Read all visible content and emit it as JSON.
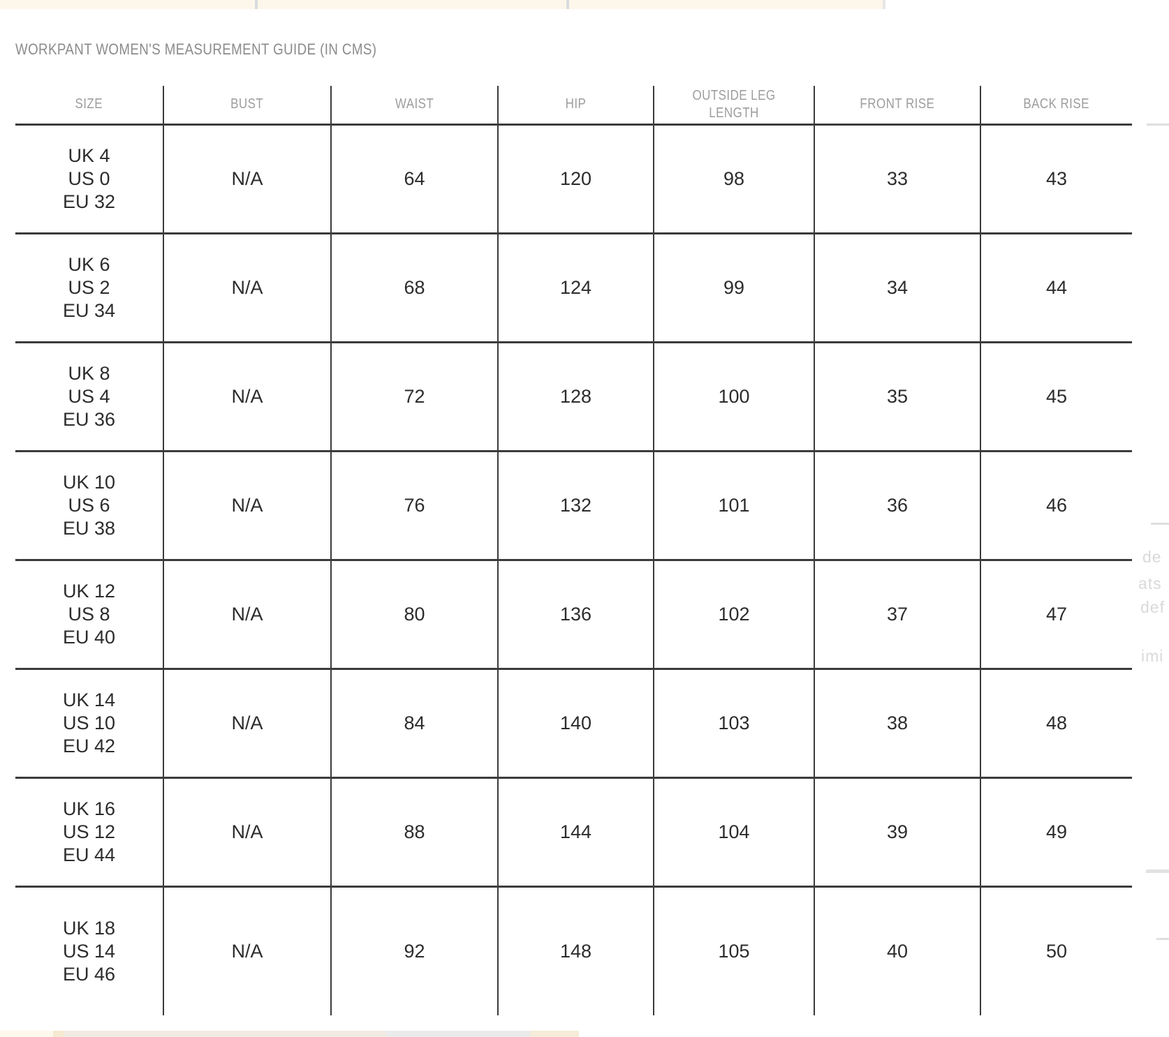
{
  "page": {
    "title": "WORKPANT WOMEN'S MEASUREMENT GUIDE (IN CMS)"
  },
  "table": {
    "columns": [
      "SIZE",
      "BUST",
      "WAIST",
      "HIP",
      "OUTSIDE LEG\nLENGTH",
      "FRONT RISE",
      "BACK RISE"
    ],
    "keys": [
      "size",
      "bust",
      "waist",
      "hip",
      "outside_leg_length",
      "front_rise",
      "back_rise"
    ],
    "rows": [
      {
        "size": "UK 4\nUS 0\nEU 32",
        "bust": "N/A",
        "waist": "64",
        "hip": "120",
        "outside_leg_length": "98",
        "front_rise": "33",
        "back_rise": "43"
      },
      {
        "size": "UK 6\nUS 2\nEU 34",
        "bust": "N/A",
        "waist": "68",
        "hip": "124",
        "outside_leg_length": "99",
        "front_rise": "34",
        "back_rise": "44"
      },
      {
        "size": "UK 8\nUS 4\nEU 36",
        "bust": "N/A",
        "waist": "72",
        "hip": "128",
        "outside_leg_length": "100",
        "front_rise": "35",
        "back_rise": "45"
      },
      {
        "size": "UK 10\nUS 6\nEU 38",
        "bust": "N/A",
        "waist": "76",
        "hip": "132",
        "outside_leg_length": "101",
        "front_rise": "36",
        "back_rise": "46"
      },
      {
        "size": "UK 12\nUS 8\nEU 40",
        "bust": "N/A",
        "waist": "80",
        "hip": "136",
        "outside_leg_length": "102",
        "front_rise": "37",
        "back_rise": "47"
      },
      {
        "size": "UK 14\nUS 10\nEU 42",
        "bust": "N/A",
        "waist": "84",
        "hip": "140",
        "outside_leg_length": "103",
        "front_rise": "38",
        "back_rise": "48"
      },
      {
        "size": "UK 16\nUS 12\nEU 44",
        "bust": "N/A",
        "waist": "88",
        "hip": "144",
        "outside_leg_length": "104",
        "front_rise": "39",
        "back_rise": "49"
      },
      {
        "size": "UK 18\nUS 14\nEU 46",
        "bust": "N/A",
        "waist": "92",
        "hip": "148",
        "outside_leg_length": "105",
        "front_rise": "40",
        "back_rise": "50"
      }
    ]
  },
  "background": {
    "fragments": [
      "de",
      "ats",
      "def",
      "imi"
    ]
  },
  "colors": {
    "top_strip": "#fdf6ea",
    "strip_divider": "#d9dcde",
    "table_border": "#3b3b3b",
    "header_text": "#9d9d9d",
    "body_text": "#2c2c2c",
    "title_text": "#8b8b8b",
    "faint_text": "#d9d9d9",
    "faint_line": "#dfdfdf",
    "bottom_cream": "#fdf7ec",
    "bottom_beige": "#f6e9d1",
    "bottom_warm": "#f2ebe3",
    "bottom_gray": "#ebebec",
    "bottom_beige2": "#f5ecd9"
  }
}
